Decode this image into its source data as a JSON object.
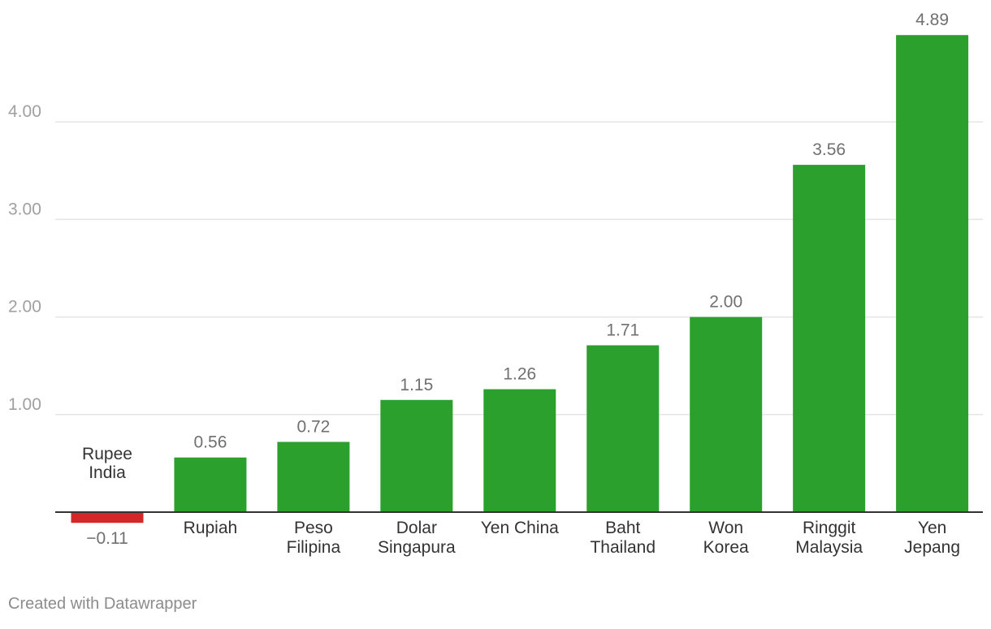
{
  "chart_data": {
    "type": "bar",
    "categories": [
      [
        "Rupee",
        "India"
      ],
      [
        "Rupiah"
      ],
      [
        "Peso",
        "Filipina"
      ],
      [
        "Dolar",
        "Singapura"
      ],
      [
        "Yen China"
      ],
      [
        "Baht",
        "Thailand"
      ],
      [
        "Won",
        "Korea"
      ],
      [
        "Ringgit",
        "Malaysia"
      ],
      [
        "Yen",
        "Jepang"
      ]
    ],
    "values": [
      -0.11,
      0.56,
      0.72,
      1.15,
      1.26,
      1.71,
      2.0,
      3.56,
      4.89
    ],
    "value_labels": [
      "−0.11",
      "0.56",
      "0.72",
      "1.15",
      "1.26",
      "1.71",
      "2.00",
      "3.56",
      "4.89"
    ],
    "y_ticks": [
      1,
      2,
      3,
      4
    ],
    "y_tick_labels": [
      "1.00",
      "2.00",
      "3.00",
      "4.00"
    ],
    "ylim": [
      -0.11,
      4.89
    ],
    "grid": true,
    "colors": {
      "positive": "#2ca02c",
      "negative": "#d62728",
      "grid": "#e5e5e5",
      "axis": "#333333",
      "tick_text": "#a0a0a0",
      "value_text": "#707070",
      "category_text": "#333333"
    }
  },
  "footer": {
    "credit": "Created with Datawrapper"
  }
}
